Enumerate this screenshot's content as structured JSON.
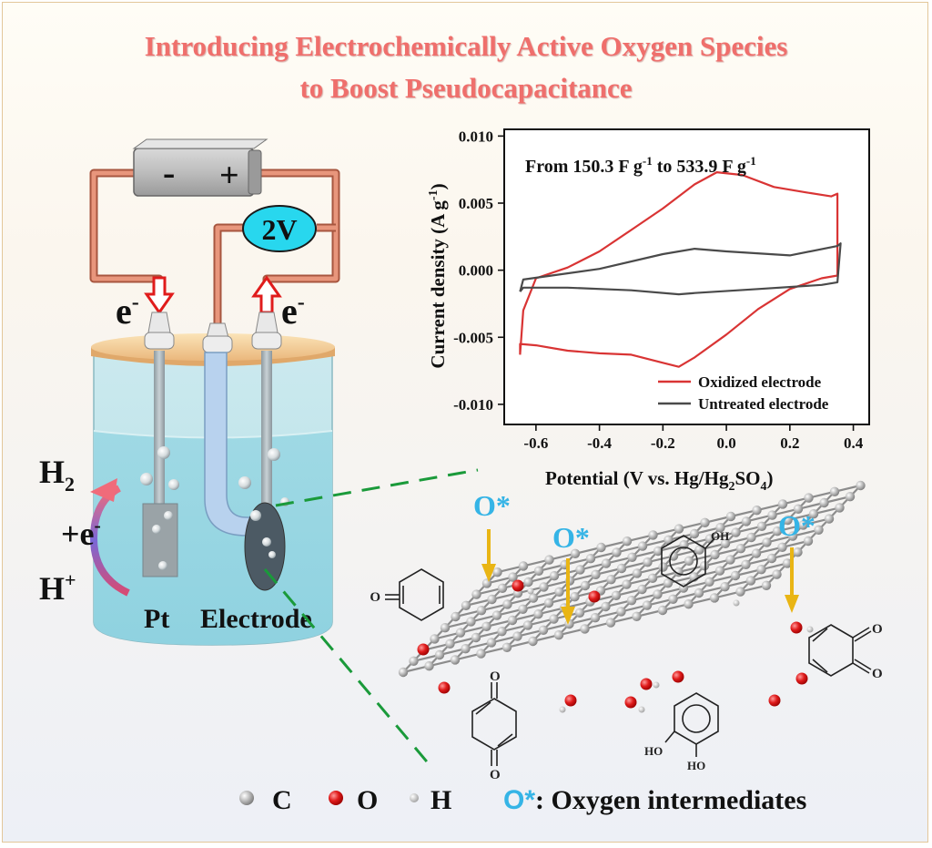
{
  "title": {
    "line1": "Introducing Electrochemically Active Oxygen Species",
    "line2": "to Boost Pseudocapacitance"
  },
  "cell": {
    "battery_minus": "-",
    "battery_plus": "+",
    "voltage": "2V",
    "e_left": "e",
    "e_right": "e",
    "e_sup": "-",
    "h2_main": "H",
    "h2_sub": "2",
    "plus_e": "+e",
    "plus_e_sup": "-",
    "hplus_main": "H",
    "hplus_sup": "+",
    "pt_label": "Pt",
    "electrode_label": "Electrode"
  },
  "molecule": {
    "o_star_1": "O*",
    "o_star_2": "O*",
    "o_star_3": "O*",
    "oh_label": "OH",
    "ho_label_1": "HO",
    "ho_label_2": "HO",
    "o_label_1": "O",
    "o_label_2": "O",
    "o_label_3": "O",
    "o_label_4": "O",
    "o_label_5": "O"
  },
  "legend": {
    "c_label": "C",
    "o_label": "O",
    "h_label": "H",
    "ostar": "O*",
    "ostar_desc": ": Oxygen intermediates"
  },
  "colors": {
    "title": "#ef6f6c",
    "oxidized": "#d93434",
    "untreated": "#4a4a4a",
    "ostar": "#35b4e6",
    "arrow_yellow": "#e9b514",
    "wire": "#d9826a",
    "dash_green": "#1a9a3a"
  },
  "chart_data": {
    "type": "line",
    "annotation": "From 150.3 F g-1 to 533.9 F g-1",
    "annotation_parts": {
      "from": "From 150.3 F g",
      "sup1": "-1",
      "to": " to 533.9 F g",
      "sup2": "-1"
    },
    "xlabel": "Potential (V vs. Hg/Hg2SO4)",
    "xlabel_parts": {
      "a": "Potential (V vs. Hg/Hg",
      "b": "2",
      "c": "SO",
      "d": "4",
      "e": ")"
    },
    "ylabel": "Current density (A g-1)",
    "ylabel_parts": {
      "a": "Current density (A g",
      "b": "-1",
      "c": ")"
    },
    "xlim": [
      -0.7,
      0.45
    ],
    "ylim": [
      -0.0115,
      0.0105
    ],
    "xticks": [
      -0.6,
      -0.4,
      -0.2,
      0.0,
      0.2,
      0.4
    ],
    "xtick_labels": [
      "-0.6",
      "-0.4",
      "-0.2",
      "0.0",
      "0.2",
      "0.4"
    ],
    "yticks": [
      0.01,
      0.005,
      0.0,
      -0.005,
      -0.01
    ],
    "ytick_labels": [
      "0.010",
      "0.005",
      "0.000",
      "-0.005",
      "-0.010"
    ],
    "legend_position": "bottom-right",
    "series": [
      {
        "name": "Oxidized electrode",
        "color": "#d93434",
        "x": [
          -0.65,
          -0.64,
          -0.6,
          -0.5,
          -0.4,
          -0.3,
          -0.2,
          -0.1,
          -0.03,
          0.05,
          0.15,
          0.25,
          0.33,
          0.35,
          0.35,
          0.3,
          0.2,
          0.1,
          0.0,
          -0.1,
          -0.15,
          -0.2,
          -0.3,
          -0.4,
          -0.5,
          -0.6,
          -0.65,
          -0.65
        ],
        "y": [
          -0.0063,
          -0.003,
          -0.0006,
          0.0002,
          0.0014,
          0.003,
          0.0046,
          0.0064,
          0.0073,
          0.0071,
          0.0062,
          0.0058,
          0.0055,
          0.0057,
          -0.0004,
          -0.0006,
          -0.0014,
          -0.0029,
          -0.0048,
          -0.0065,
          -0.0072,
          -0.0069,
          -0.0063,
          -0.0062,
          -0.006,
          -0.0056,
          -0.0055,
          -0.0063
        ]
      },
      {
        "name": "Untreated electrode",
        "color": "#4a4a4a",
        "x": [
          -0.65,
          -0.64,
          -0.55,
          -0.4,
          -0.2,
          -0.1,
          0.0,
          0.2,
          0.35,
          0.36,
          0.35,
          0.3,
          0.1,
          -0.1,
          -0.15,
          -0.3,
          -0.5,
          -0.64,
          -0.65
        ],
        "y": [
          -0.0016,
          -0.0007,
          -0.0004,
          0.0001,
          0.0012,
          0.0016,
          0.0014,
          0.0011,
          0.0018,
          0.002,
          -0.0009,
          -0.0011,
          -0.0014,
          -0.0017,
          -0.0018,
          -0.0015,
          -0.0013,
          -0.0013,
          -0.0016
        ]
      }
    ]
  }
}
